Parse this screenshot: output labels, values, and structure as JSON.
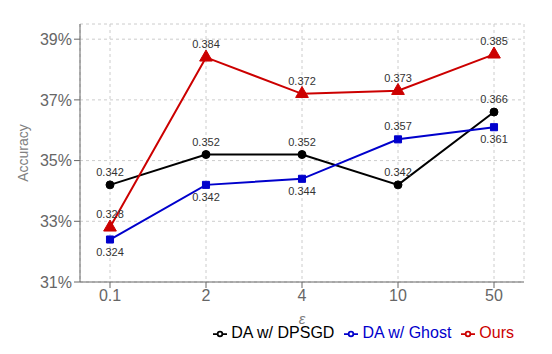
{
  "chart_data": {
    "type": "line",
    "categories": [
      "0.1",
      "2",
      "4",
      "10",
      "50"
    ],
    "series": [
      {
        "name": "DA w/ DPSGD",
        "color": "#000000",
        "marker": "circle",
        "values": [
          0.342,
          0.352,
          0.352,
          0.342,
          0.366
        ]
      },
      {
        "name": "DA w/ Ghost",
        "color": "#0000cc",
        "marker": "square",
        "values": [
          0.324,
          0.342,
          0.344,
          0.357,
          0.361
        ]
      },
      {
        "name": "Ours",
        "color": "#cc0000",
        "marker": "triangle",
        "values": [
          0.328,
          0.384,
          0.372,
          0.373,
          0.385
        ]
      }
    ],
    "x_label": "ε",
    "y_label": "Accuracy",
    "ylim": [
      0.31,
      0.395
    ],
    "yticks": [
      {
        "value": 0.31,
        "label": "31%"
      },
      {
        "value": 0.33,
        "label": "33%"
      },
      {
        "value": 0.35,
        "label": "35%"
      },
      {
        "value": 0.37,
        "label": "37%"
      },
      {
        "value": 0.39,
        "label": "39%"
      }
    ],
    "grid": true,
    "legend": "lower right",
    "data_labels": true
  }
}
